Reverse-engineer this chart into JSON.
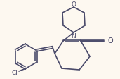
{
  "background_color": "#fdf8f0",
  "line_color": "#4a4a6a",
  "line_width": 1.2,
  "text_color": "#4a4a6a",
  "cl_label": "Cl",
  "o_label": "O",
  "n_label": "N",
  "cho_label": "O",
  "figsize": [
    1.71,
    1.12
  ],
  "dpi": 100
}
